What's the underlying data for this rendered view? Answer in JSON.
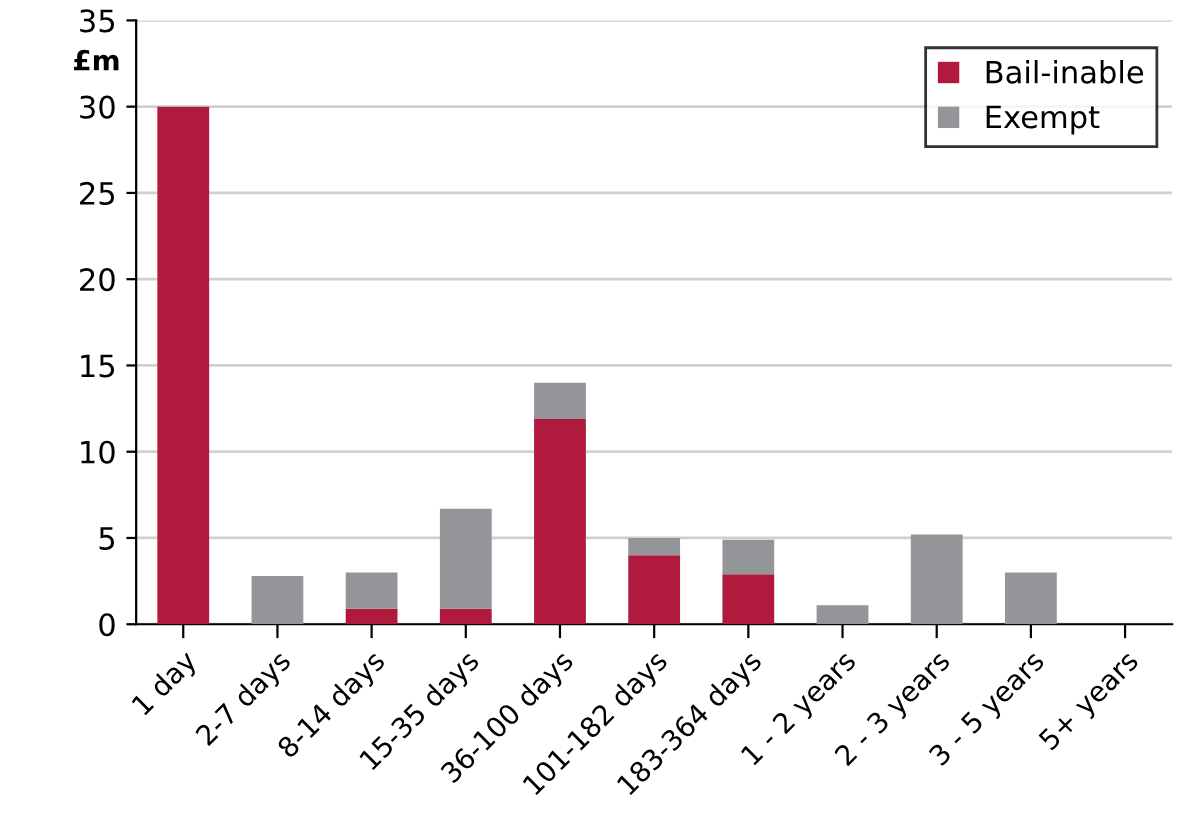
{
  "chart_data": {
    "type": "bar",
    "stacked": true,
    "ylabel": "£m",
    "categories": [
      "1 day",
      "2-7 days",
      "8-14 days",
      "15-35 days",
      "36-100 days",
      "101-182 days",
      "183-364 days",
      "1 - 2 years",
      "2 - 3 years",
      "3 - 5 years",
      "5+ years"
    ],
    "series": [
      {
        "name": "Bail-inable",
        "color": "#b01a3c",
        "values": [
          30,
          0,
          0.9,
          0.9,
          11.9,
          4.0,
          2.9,
          0,
          0,
          0,
          0
        ]
      },
      {
        "name": "Exempt",
        "color": "#939598",
        "values": [
          0,
          2.8,
          2.1,
          5.8,
          2.1,
          1.0,
          2.0,
          1.1,
          5.2,
          3.0,
          0
        ]
      }
    ],
    "ylim": [
      0,
      35
    ],
    "yticks": [
      0,
      5,
      10,
      15,
      20,
      25,
      30,
      35
    ],
    "grid": "y",
    "legend": "top right"
  }
}
